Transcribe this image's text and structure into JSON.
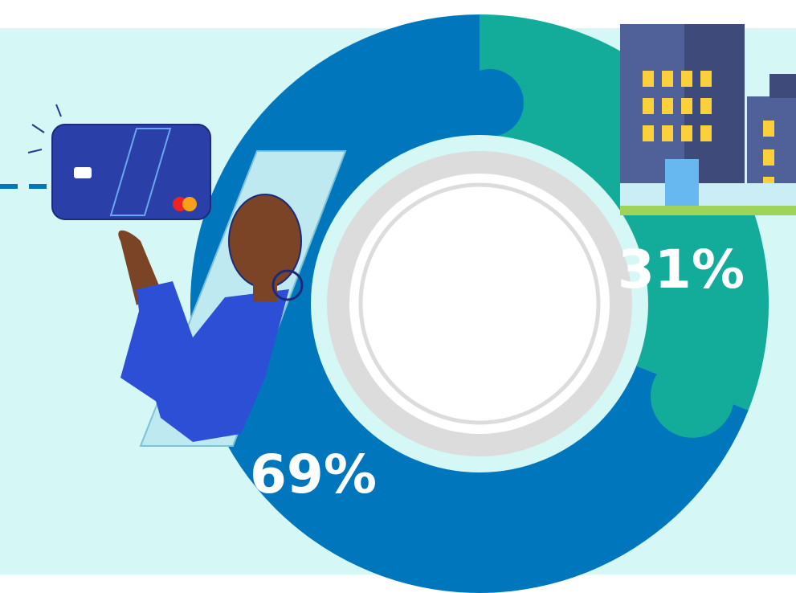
{
  "chart_data": {
    "type": "donut",
    "values": [
      31,
      69
    ],
    "value_labels": [
      "31%",
      "69%"
    ],
    "colors": [
      "#13ab99",
      "#0077bd"
    ]
  }
}
